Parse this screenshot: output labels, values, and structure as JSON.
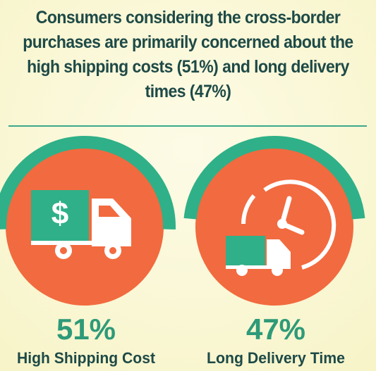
{
  "chart_data": {
    "type": "gauge",
    "title": "Consumers considering the cross-border purchases are primarily concerned about the high shipping costs (51%) and long delivery times (47%)",
    "categories": [
      "High Shipping Cost",
      "Long Delivery Time"
    ],
    "values": [
      51,
      47
    ],
    "value_labels": [
      "51%",
      "47%"
    ],
    "ylim": [
      0,
      100
    ],
    "color": "#2fb088"
  }
}
